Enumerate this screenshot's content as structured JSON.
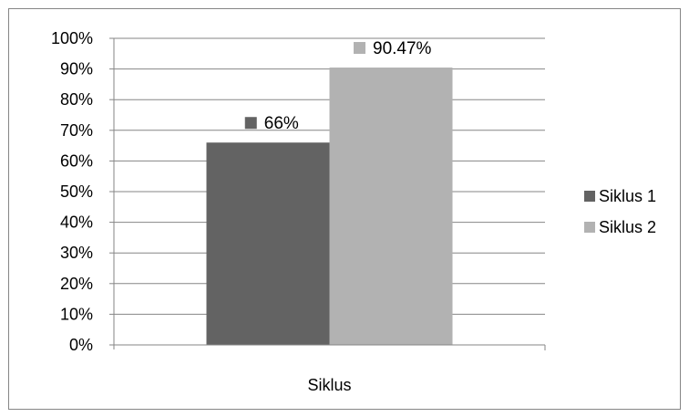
{
  "chart_data": {
    "type": "bar",
    "title": "",
    "xlabel": "",
    "ylabel": "",
    "categories": [
      "Siklus"
    ],
    "series": [
      {
        "name": "Siklus 1",
        "values": [
          66
        ],
        "label": "66%",
        "color": "#636363"
      },
      {
        "name": "Siklus 2",
        "values": [
          90.47
        ],
        "label": "90.47%",
        "color": "#b2b2b2"
      }
    ],
    "ylim": [
      0,
      100
    ],
    "y_ticks": [
      "0%",
      "10%",
      "20%",
      "30%",
      "40%",
      "50%",
      "60%",
      "70%",
      "80%",
      "90%",
      "100%"
    ],
    "grid": true,
    "legend_position": "right"
  }
}
